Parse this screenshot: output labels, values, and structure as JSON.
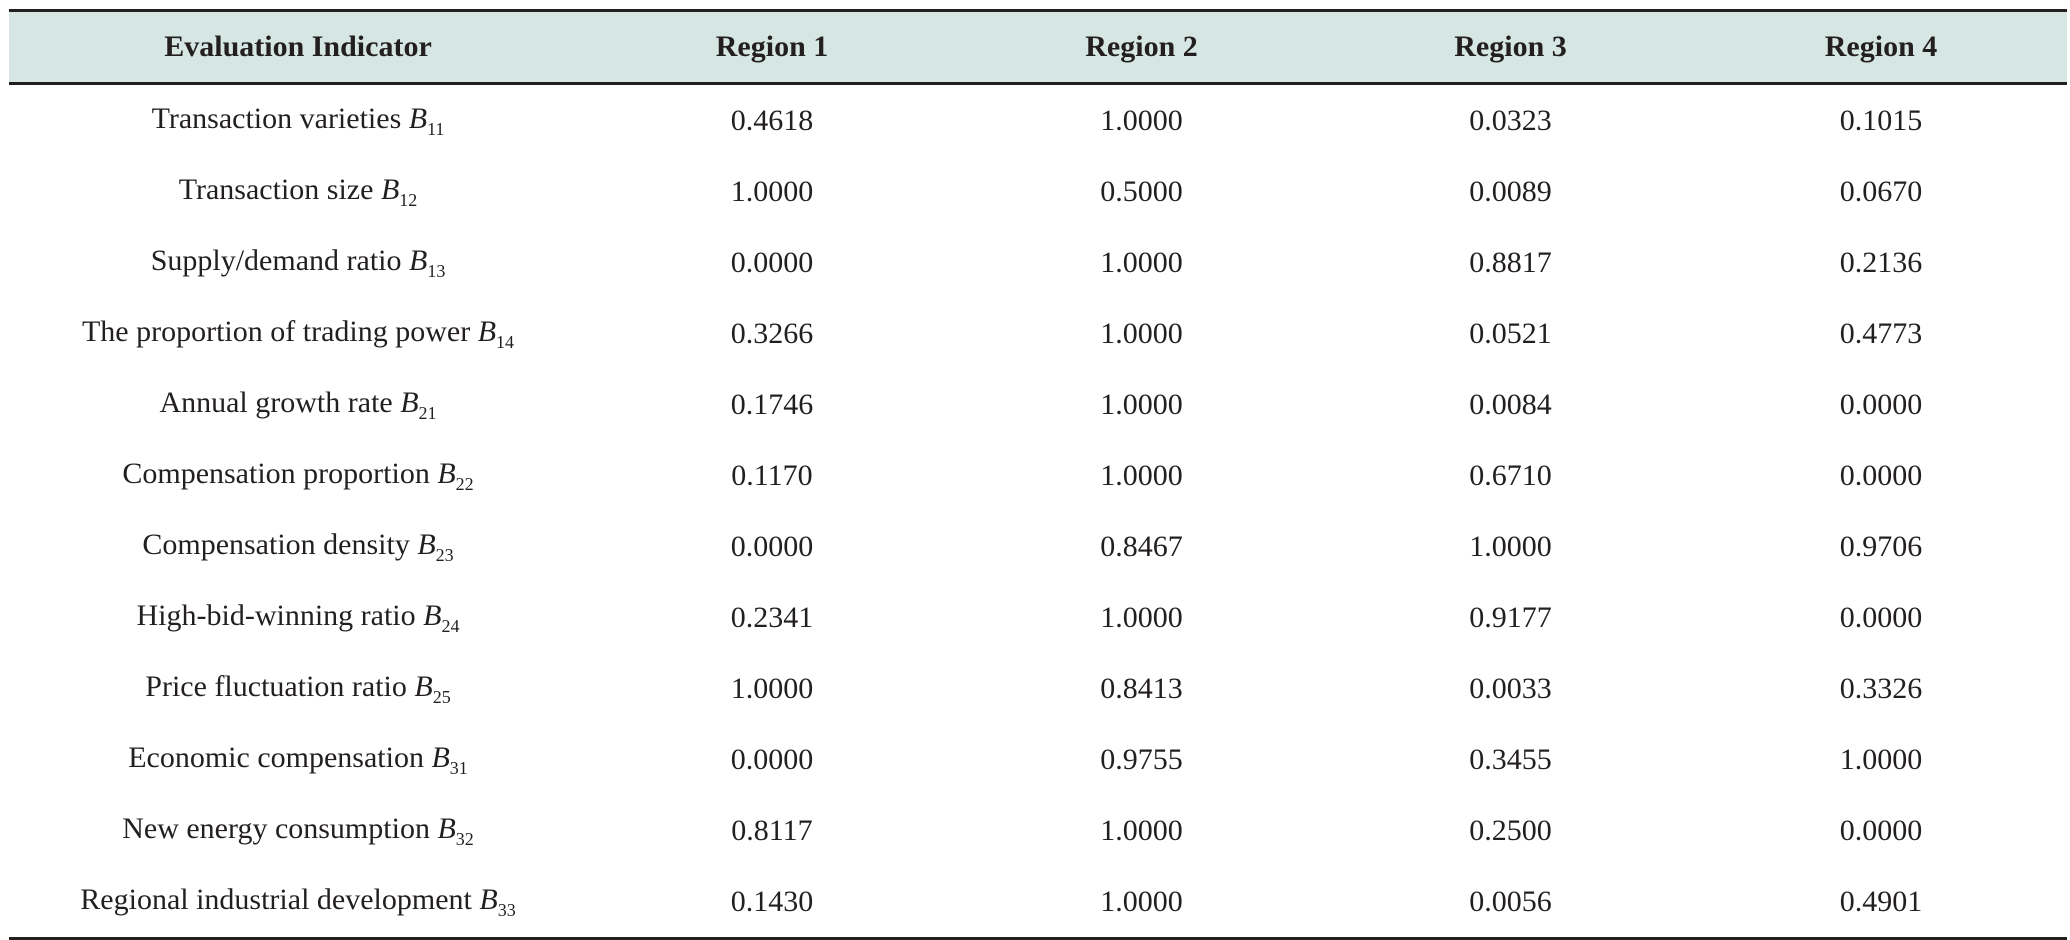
{
  "table": {
    "headers": [
      "Evaluation Indicator",
      "Region 1",
      "Region 2",
      "Region 3",
      "Region 4"
    ],
    "rows": [
      {
        "indicator": "Transaction varieties",
        "symbol": "B",
        "subscript": "11",
        "values": [
          "0.4618",
          "1.0000",
          "0.0323",
          "0.1015"
        ]
      },
      {
        "indicator": "Transaction size",
        "symbol": "B",
        "subscript": "12",
        "values": [
          "1.0000",
          "0.5000",
          "0.0089",
          "0.0670"
        ]
      },
      {
        "indicator": "Supply/demand ratio",
        "symbol": "B",
        "subscript": "13",
        "values": [
          "0.0000",
          "1.0000",
          "0.8817",
          "0.2136"
        ]
      },
      {
        "indicator": "The proportion of trading power",
        "symbol": "B",
        "subscript": "14",
        "values": [
          "0.3266",
          "1.0000",
          "0.0521",
          "0.4773"
        ]
      },
      {
        "indicator": "Annual growth rate",
        "symbol": "B",
        "subscript": "21",
        "values": [
          "0.1746",
          "1.0000",
          "0.0084",
          "0.0000"
        ]
      },
      {
        "indicator": "Compensation proportion",
        "symbol": "B",
        "subscript": "22",
        "values": [
          "0.1170",
          "1.0000",
          "0.6710",
          "0.0000"
        ]
      },
      {
        "indicator": "Compensation density",
        "symbol": "B",
        "subscript": "23",
        "values": [
          "0.0000",
          "0.8467",
          "1.0000",
          "0.9706"
        ]
      },
      {
        "indicator": "High-bid-winning ratio",
        "symbol": "B",
        "subscript": "24",
        "values": [
          "0.2341",
          "1.0000",
          "0.9177",
          "0.0000"
        ]
      },
      {
        "indicator": "Price fluctuation ratio",
        "symbol": "B",
        "subscript": "25",
        "values": [
          "1.0000",
          "0.8413",
          "0.0033",
          "0.3326"
        ]
      },
      {
        "indicator": "Economic compensation",
        "symbol": "B",
        "subscript": "31",
        "values": [
          "0.0000",
          "0.9755",
          "0.3455",
          "1.0000"
        ]
      },
      {
        "indicator": "New energy consumption",
        "symbol": "B",
        "subscript": "32",
        "values": [
          "0.8117",
          "1.0000",
          "0.2500",
          "0.0000"
        ]
      },
      {
        "indicator": "Regional industrial development",
        "symbol": "B",
        "subscript": "33",
        "values": [
          "0.1430",
          "1.0000",
          "0.0056",
          "0.4901"
        ]
      }
    ]
  }
}
